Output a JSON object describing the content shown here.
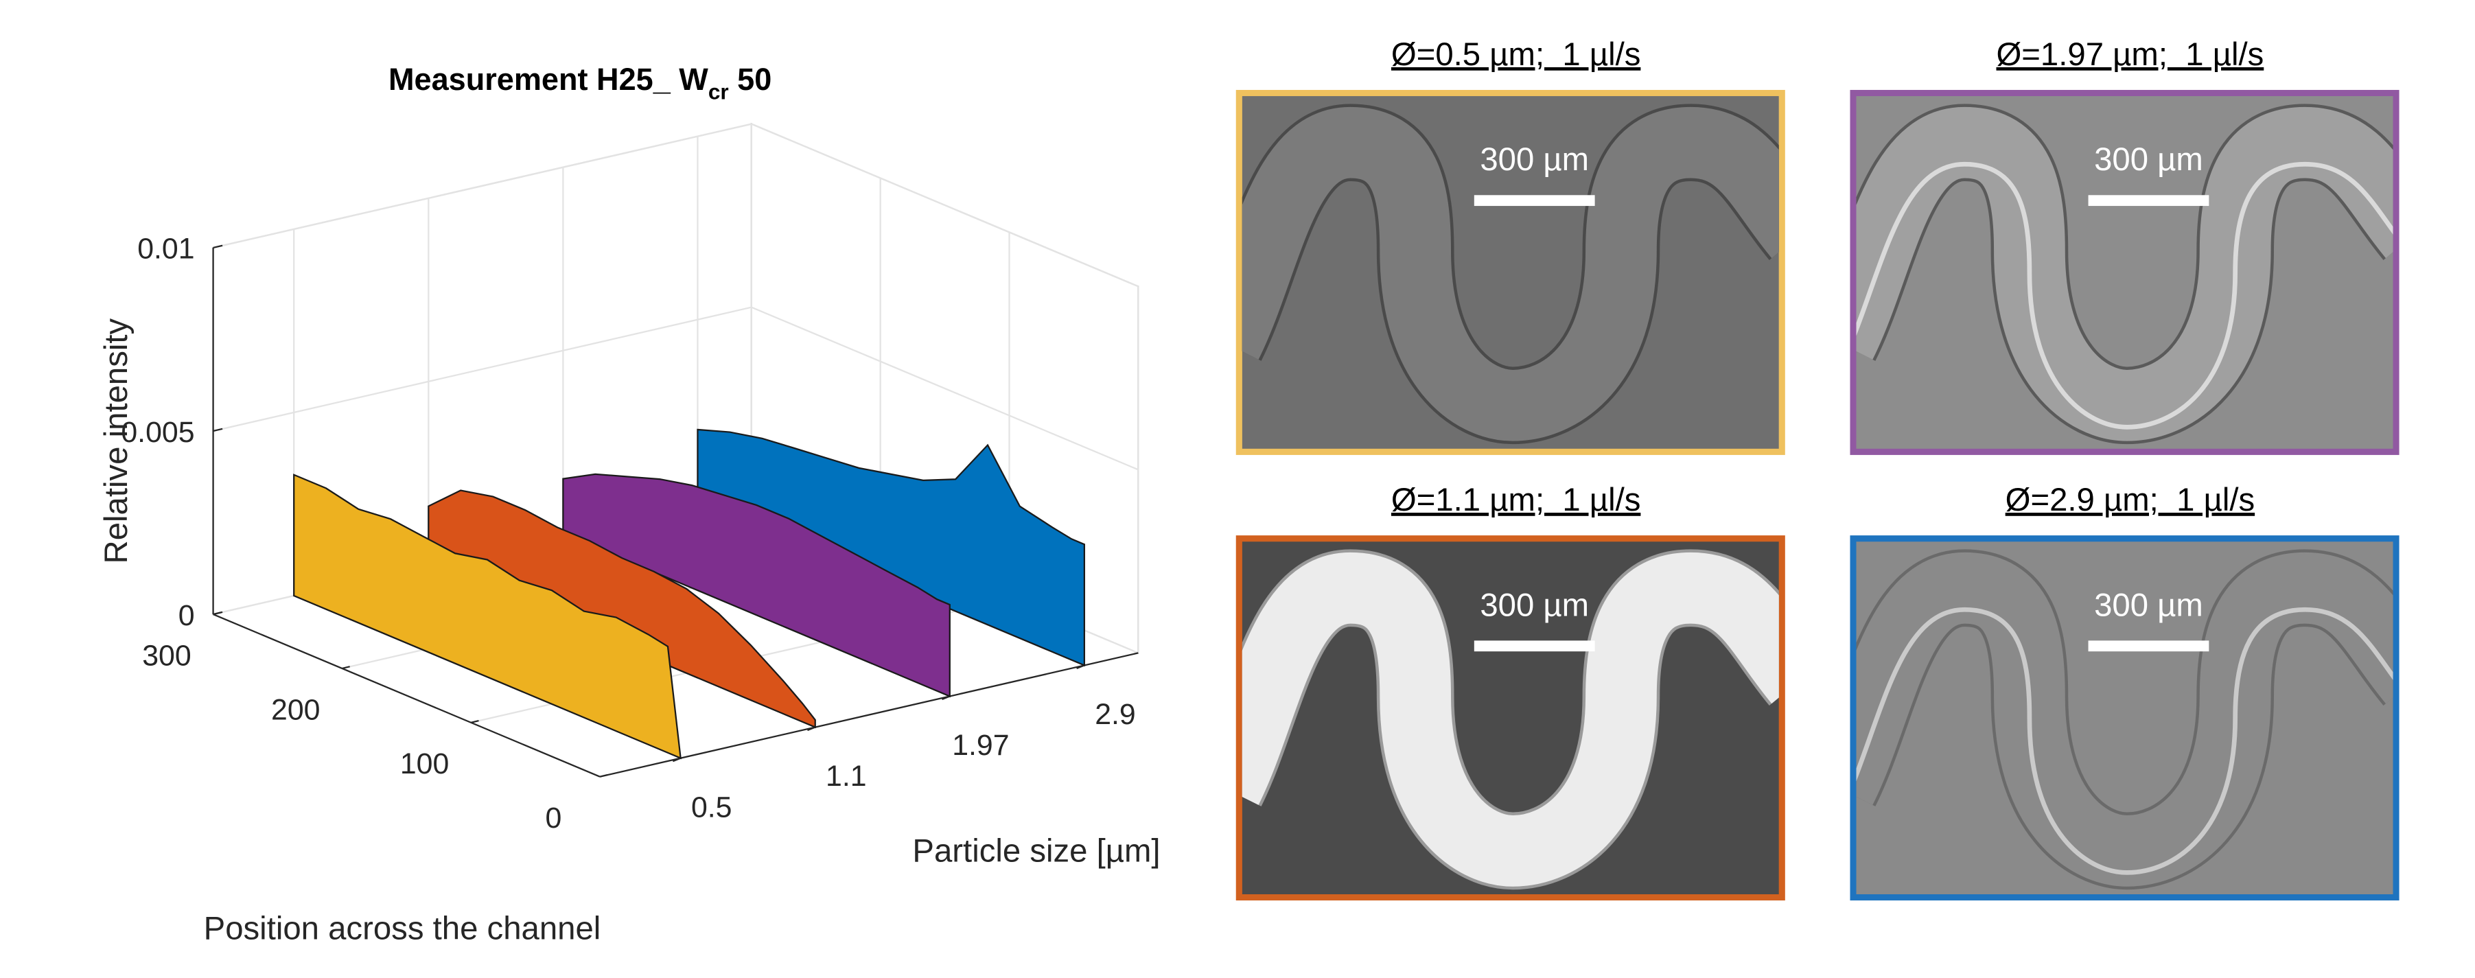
{
  "chart_data": {
    "type": "waterfall",
    "title": {
      "main": "Measurement H25_ W",
      "sub": "cr",
      "end": " 50"
    },
    "zlabel": "Relative intensity",
    "xlabel": "Position across the channel",
    "ylabel": "Particle size [µm]",
    "x": [
      0,
      10,
      25,
      50,
      75,
      100,
      125,
      150,
      175,
      200,
      225,
      250,
      275,
      300
    ],
    "xlim": [
      0,
      300
    ],
    "xticks": [
      0,
      100,
      200,
      300
    ],
    "zlim": [
      0,
      0.01
    ],
    "zticks": [
      0,
      0.005,
      0.01
    ],
    "categories": [
      "0.5",
      "1.1",
      "1.97",
      "2.9"
    ],
    "grid": true,
    "series": [
      {
        "color": "#EDB120",
        "values": [
          0,
          0.0029,
          0.003,
          0.0031,
          0.0029,
          0.0031,
          0.003,
          0.0032,
          0.003,
          0.0031,
          0.0032,
          0.0031,
          0.0033,
          0.0033
        ]
      },
      {
        "color": "#D95319",
        "values": [
          0.0002,
          0.0005,
          0.0009,
          0.0015,
          0.002,
          0.0023,
          0.0024,
          0.0024,
          0.0025,
          0.0025,
          0.0026,
          0.0026,
          0.0024,
          0.0016
        ]
      },
      {
        "color": "#7E2F8E",
        "values": [
          0.0025,
          0.0025,
          0.0026,
          0.0027,
          0.0028,
          0.0029,
          0.003,
          0.003,
          0.0029,
          0.0028,
          0.0026,
          0.0023,
          0.002,
          0.0015
        ]
      },
      {
        "color": "#0072BD",
        "values": [
          0.0033,
          0.0033,
          0.0034,
          0.0036,
          0.0049,
          0.0036,
          0.0032,
          0.003,
          0.0028,
          0.0027,
          0.0026,
          0.0025,
          0.0023,
          0.002
        ]
      }
    ]
  },
  "panels": [
    {
      "caption": "Ø=0.5 µm;  1 µl/s",
      "scale_label": "300 µm"
    },
    {
      "caption": "Ø=1.97 µm;  1 µl/s",
      "scale_label": "300 µm"
    },
    {
      "caption": "Ø=1.1 µm;  1 µl/s",
      "scale_label": "300 µm"
    },
    {
      "caption": "Ø=2.9 µm;  1 µl/s",
      "scale_label": "300 µm"
    }
  ]
}
